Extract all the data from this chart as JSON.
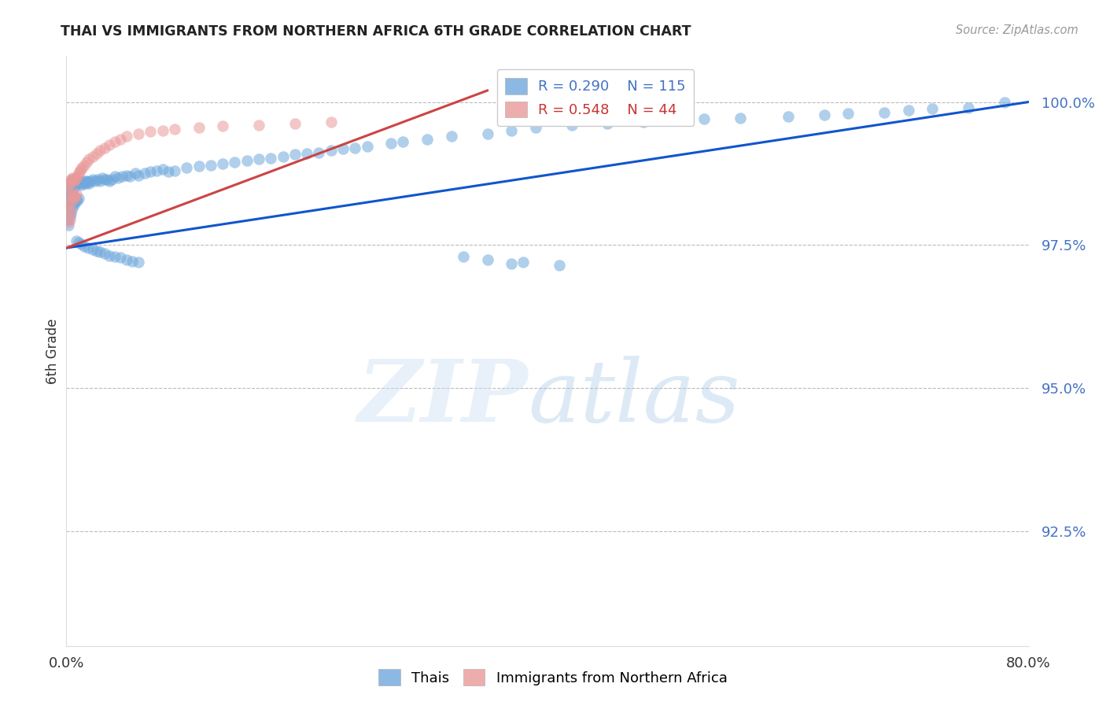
{
  "title": "THAI VS IMMIGRANTS FROM NORTHERN AFRICA 6TH GRADE CORRELATION CHART",
  "source": "Source: ZipAtlas.com",
  "ylabel": "6th Grade",
  "x_range": [
    0.0,
    0.8
  ],
  "y_range": [
    0.905,
    1.008
  ],
  "y_ticks": [
    0.925,
    0.95,
    0.975,
    1.0
  ],
  "y_tick_labels": [
    "92.5%",
    "95.0%",
    "97.5%",
    "100.0%"
  ],
  "legend_blue_r": "R = 0.290",
  "legend_blue_n": "N = 115",
  "legend_pink_r": "R = 0.548",
  "legend_pink_n": "N = 44",
  "blue_color": "#6fa8dc",
  "pink_color": "#ea9999",
  "line_blue": "#1155cc",
  "line_pink": "#cc4444",
  "blue_line_x": [
    0.0,
    0.8
  ],
  "blue_line_y": [
    0.9745,
    1.0
  ],
  "pink_line_x": [
    0.0,
    0.35
  ],
  "pink_line_y": [
    0.9745,
    1.002
  ],
  "blue_scatter_x": [
    0.001,
    0.001,
    0.001,
    0.002,
    0.002,
    0.002,
    0.002,
    0.003,
    0.003,
    0.003,
    0.004,
    0.004,
    0.004,
    0.005,
    0.005,
    0.005,
    0.006,
    0.006,
    0.007,
    0.007,
    0.008,
    0.008,
    0.009,
    0.009,
    0.01,
    0.01,
    0.011,
    0.012,
    0.013,
    0.014,
    0.015,
    0.016,
    0.017,
    0.018,
    0.019,
    0.02,
    0.022,
    0.024,
    0.026,
    0.028,
    0.03,
    0.032,
    0.034,
    0.036,
    0.038,
    0.04,
    0.043,
    0.046,
    0.05,
    0.053,
    0.057,
    0.06,
    0.065,
    0.07,
    0.075,
    0.08,
    0.085,
    0.09,
    0.1,
    0.11,
    0.12,
    0.13,
    0.14,
    0.15,
    0.16,
    0.17,
    0.18,
    0.19,
    0.2,
    0.21,
    0.22,
    0.23,
    0.24,
    0.25,
    0.27,
    0.28,
    0.3,
    0.32,
    0.35,
    0.37,
    0.39,
    0.42,
    0.45,
    0.48,
    0.5,
    0.53,
    0.56,
    0.6,
    0.63,
    0.65,
    0.68,
    0.7,
    0.72,
    0.75,
    0.78,
    0.35,
    0.37,
    0.33,
    0.38,
    0.41,
    0.008,
    0.01,
    0.012,
    0.015,
    0.018,
    0.022,
    0.025,
    0.028,
    0.032,
    0.036,
    0.04,
    0.045,
    0.05,
    0.055,
    0.06
  ],
  "blue_scatter_y": [
    0.9845,
    0.982,
    0.9795,
    0.985,
    0.983,
    0.981,
    0.9785,
    0.9855,
    0.9825,
    0.98,
    0.986,
    0.9835,
    0.9805,
    0.9865,
    0.984,
    0.9815,
    0.985,
    0.982,
    0.9855,
    0.9825,
    0.986,
    0.983,
    0.9858,
    0.9828,
    0.9862,
    0.9832,
    0.9858,
    0.9855,
    0.986,
    0.9858,
    0.9862,
    0.9858,
    0.9862,
    0.986,
    0.9858,
    0.9862,
    0.9865,
    0.9862,
    0.9865,
    0.9862,
    0.9868,
    0.9865,
    0.9865,
    0.9862,
    0.9865,
    0.987,
    0.9868,
    0.987,
    0.9872,
    0.987,
    0.9875,
    0.9872,
    0.9875,
    0.9878,
    0.988,
    0.9882,
    0.9878,
    0.988,
    0.9885,
    0.9888,
    0.989,
    0.9892,
    0.9895,
    0.9898,
    0.99,
    0.9902,
    0.9905,
    0.9908,
    0.991,
    0.9912,
    0.9915,
    0.9918,
    0.992,
    0.9922,
    0.9928,
    0.993,
    0.9935,
    0.994,
    0.9945,
    0.995,
    0.9955,
    0.996,
    0.9962,
    0.9965,
    0.9968,
    0.997,
    0.9972,
    0.9975,
    0.9978,
    0.998,
    0.9982,
    0.9985,
    0.9988,
    0.999,
    1.0,
    0.9725,
    0.9718,
    0.973,
    0.972,
    0.9715,
    0.9758,
    0.9755,
    0.9752,
    0.9748,
    0.9745,
    0.9742,
    0.974,
    0.9738,
    0.9735,
    0.9732,
    0.973,
    0.9728,
    0.9725,
    0.9722,
    0.972
  ],
  "pink_scatter_x": [
    0.001,
    0.001,
    0.002,
    0.002,
    0.002,
    0.003,
    0.003,
    0.003,
    0.004,
    0.004,
    0.004,
    0.005,
    0.005,
    0.006,
    0.006,
    0.007,
    0.007,
    0.008,
    0.008,
    0.009,
    0.01,
    0.011,
    0.012,
    0.013,
    0.015,
    0.017,
    0.019,
    0.022,
    0.025,
    0.028,
    0.032,
    0.036,
    0.04,
    0.045,
    0.05,
    0.06,
    0.07,
    0.08,
    0.09,
    0.11,
    0.13,
    0.16,
    0.19,
    0.22
  ],
  "pink_scatter_y": [
    0.985,
    0.981,
    0.9855,
    0.982,
    0.979,
    0.986,
    0.9825,
    0.9795,
    0.9865,
    0.9835,
    0.9808,
    0.9868,
    0.9838,
    0.9862,
    0.9832,
    0.9865,
    0.9835,
    0.9868,
    0.9838,
    0.987,
    0.9875,
    0.9878,
    0.9882,
    0.9885,
    0.989,
    0.9895,
    0.99,
    0.9905,
    0.991,
    0.9915,
    0.992,
    0.9925,
    0.993,
    0.9935,
    0.994,
    0.9945,
    0.9948,
    0.995,
    0.9952,
    0.9955,
    0.9958,
    0.996,
    0.9962,
    0.9965
  ]
}
